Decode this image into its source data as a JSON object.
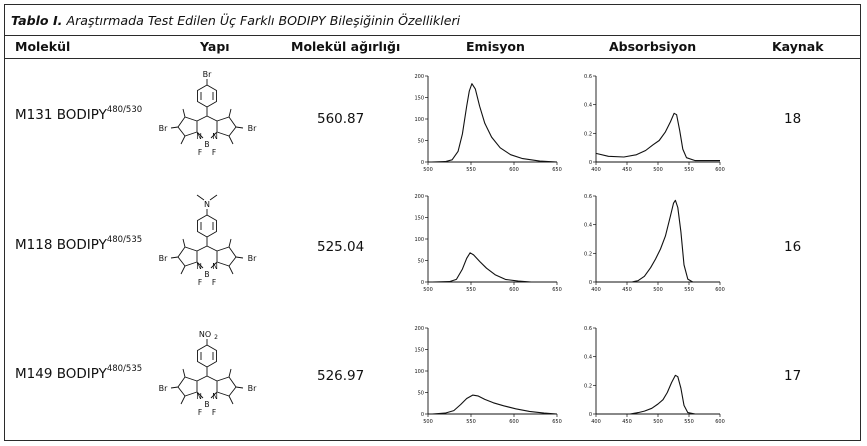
{
  "table": {
    "caption_label": "Tablo I.",
    "caption_text": "Araştırmada Test Edilen Üç Farklı BODIPY Bileşiğinin Özellikleri",
    "headers": [
      "Molekül",
      "Yapı",
      "Molekül ağırlığı",
      "Emisyon",
      "Absorbsiyon",
      "Kaynak"
    ],
    "rows": [
      {
        "molecule": "M131 BODIPY",
        "superscript": "480/530",
        "substituent": "Br",
        "weight": "560.87",
        "source": "18",
        "emission": {
          "x_ticks": [
            "500",
            "550",
            "600",
            "650"
          ],
          "y_ticks": [
            "200",
            "150",
            "100",
            "50",
            "0"
          ],
          "xlim": [
            500,
            650
          ],
          "ylim": [
            0,
            200
          ],
          "points": [
            [
              504,
              0
            ],
            [
              520,
              1
            ],
            [
              528,
              5
            ],
            [
              535,
              25
            ],
            [
              540,
              65
            ],
            [
              545,
              130
            ],
            [
              548,
              165
            ],
            [
              551,
              182
            ],
            [
              555,
              170
            ],
            [
              560,
              130
            ],
            [
              566,
              90
            ],
            [
              574,
              58
            ],
            [
              584,
              33
            ],
            [
              596,
              17
            ],
            [
              610,
              8
            ],
            [
              630,
              2
            ],
            [
              650,
              0
            ]
          ]
        },
        "absorption": {
          "x_ticks": [
            "400",
            "450",
            "500",
            "550",
            "600"
          ],
          "y_ticks": [
            "0.6",
            "0.4",
            "0.2",
            "0"
          ],
          "xlim": [
            400,
            600
          ],
          "ylim": [
            0,
            0.6
          ],
          "points": [
            [
              400,
              0.06
            ],
            [
              420,
              0.04
            ],
            [
              445,
              0.035
            ],
            [
              465,
              0.05
            ],
            [
              480,
              0.08
            ],
            [
              492,
              0.12
            ],
            [
              502,
              0.15
            ],
            [
              512,
              0.21
            ],
            [
              520,
              0.28
            ],
            [
              526,
              0.34
            ],
            [
              530,
              0.33
            ],
            [
              535,
              0.22
            ],
            [
              540,
              0.09
            ],
            [
              546,
              0.03
            ],
            [
              560,
              0.01
            ],
            [
              600,
              0.01
            ]
          ]
        }
      },
      {
        "molecule": "M118 BODIPY",
        "superscript": "480/535",
        "substituent": "N",
        "weight": "525.04",
        "source": "16",
        "emission": {
          "x_ticks": [
            "500",
            "550",
            "600",
            "650"
          ],
          "y_ticks": [
            "200",
            "150",
            "100",
            "50",
            "0"
          ],
          "xlim": [
            500,
            650
          ],
          "ylim": [
            0,
            200
          ],
          "points": [
            [
              505,
              0
            ],
            [
              525,
              1
            ],
            [
              533,
              6
            ],
            [
              540,
              30
            ],
            [
              545,
              55
            ],
            [
              549,
              68
            ],
            [
              553,
              63
            ],
            [
              560,
              48
            ],
            [
              568,
              32
            ],
            [
              578,
              17
            ],
            [
              590,
              6
            ],
            [
              605,
              2
            ],
            [
              620,
              0
            ]
          ]
        },
        "absorption": {
          "x_ticks": [
            "400",
            "450",
            "500",
            "550",
            "600"
          ],
          "y_ticks": [
            "0.6",
            "0.4",
            "0.2",
            "0"
          ],
          "xlim": [
            400,
            600
          ],
          "ylim": [
            0,
            0.6
          ],
          "points": [
            [
              458,
              0
            ],
            [
              468,
              0.01
            ],
            [
              478,
              0.04
            ],
            [
              488,
              0.1
            ],
            [
              496,
              0.16
            ],
            [
              504,
              0.23
            ],
            [
              512,
              0.32
            ],
            [
              520,
              0.46
            ],
            [
              525,
              0.55
            ],
            [
              528,
              0.57
            ],
            [
              532,
              0.52
            ],
            [
              537,
              0.35
            ],
            [
              542,
              0.12
            ],
            [
              548,
              0.02
            ],
            [
              556,
              0
            ]
          ]
        }
      },
      {
        "molecule": "M149 BODIPY",
        "superscript": "480/535",
        "substituent": "NO",
        "substituent_sub": "2",
        "weight": "526.97",
        "source": "17",
        "emission": {
          "x_ticks": [
            "500",
            "550",
            "600",
            "650"
          ],
          "y_ticks": [
            "200",
            "150",
            "100",
            "50",
            "0"
          ],
          "xlim": [
            500,
            650
          ],
          "ylim": [
            0,
            200
          ],
          "points": [
            [
              505,
              0
            ],
            [
              520,
              2
            ],
            [
              530,
              8
            ],
            [
              538,
              22
            ],
            [
              545,
              36
            ],
            [
              552,
              44
            ],
            [
              558,
              42
            ],
            [
              566,
              34
            ],
            [
              576,
              26
            ],
            [
              588,
              19
            ],
            [
              602,
              12
            ],
            [
              618,
              6
            ],
            [
              635,
              2
            ],
            [
              650,
              0
            ]
          ]
        },
        "absorption": {
          "x_ticks": [
            "400",
            "450",
            "500",
            "550",
            "600"
          ],
          "y_ticks": [
            "0.6",
            "0.4",
            "0.2",
            "0"
          ],
          "xlim": [
            400,
            600
          ],
          "ylim": [
            0,
            0.6
          ],
          "points": [
            [
              400,
              0
            ],
            [
              455,
              0
            ],
            [
              468,
              0.01
            ],
            [
              478,
              0.02
            ],
            [
              490,
              0.04
            ],
            [
              500,
              0.07
            ],
            [
              508,
              0.1
            ],
            [
              515,
              0.15
            ],
            [
              522,
              0.22
            ],
            [
              528,
              0.27
            ],
            [
              532,
              0.26
            ],
            [
              537,
              0.18
            ],
            [
              542,
              0.06
            ],
            [
              548,
              0.01
            ],
            [
              560,
              0
            ]
          ]
        }
      }
    ],
    "structure_labels": {
      "br": "Br",
      "b": "B",
      "n": "N",
      "f": "F"
    }
  }
}
